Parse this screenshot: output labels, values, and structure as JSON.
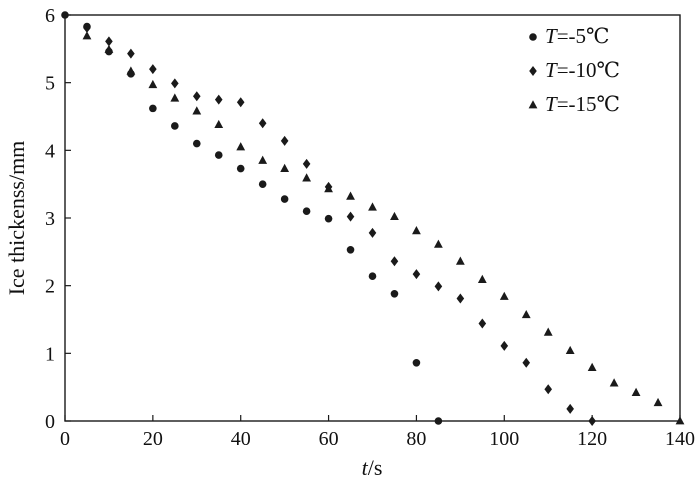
{
  "chart_data": {
    "type": "scatter",
    "xlabel_italic": "t",
    "xlabel_rest": "/s",
    "ylabel": "Ice thickenss/mm",
    "xlim": [
      0,
      140
    ],
    "ylim": [
      0,
      6
    ],
    "x_ticks": [
      0,
      20,
      40,
      60,
      80,
      100,
      120,
      140
    ],
    "y_ticks": [
      0,
      1,
      2,
      3,
      4,
      5,
      6
    ],
    "grid": false,
    "legend_position": "top-right",
    "series": [
      {
        "name_italic": "T",
        "name_rest": "=-5℃",
        "marker": "circle",
        "points": [
          [
            0,
            6.0
          ],
          [
            5,
            5.83
          ],
          [
            10,
            5.46
          ],
          [
            15,
            5.13
          ],
          [
            20,
            4.62
          ],
          [
            25,
            4.36
          ],
          [
            30,
            4.1
          ],
          [
            35,
            3.93
          ],
          [
            40,
            3.73
          ],
          [
            45,
            3.5
          ],
          [
            50,
            3.28
          ],
          [
            55,
            3.1
          ],
          [
            60,
            2.99
          ],
          [
            65,
            2.53
          ],
          [
            70,
            2.14
          ],
          [
            75,
            1.88
          ],
          [
            80,
            0.86
          ],
          [
            85,
            0.0
          ]
        ]
      },
      {
        "name_italic": "T",
        "name_rest": "=-10℃",
        "marker": "diamond",
        "points": [
          [
            5,
            5.81
          ],
          [
            10,
            5.61
          ],
          [
            15,
            5.43
          ],
          [
            20,
            5.2
          ],
          [
            25,
            4.99
          ],
          [
            30,
            4.8
          ],
          [
            35,
            4.75
          ],
          [
            40,
            4.71
          ],
          [
            45,
            4.4
          ],
          [
            50,
            4.14
          ],
          [
            55,
            3.8
          ],
          [
            60,
            3.46
          ],
          [
            65,
            3.02
          ],
          [
            70,
            2.78
          ],
          [
            75,
            2.36
          ],
          [
            80,
            2.17
          ],
          [
            85,
            1.99
          ],
          [
            90,
            1.81
          ],
          [
            95,
            1.44
          ],
          [
            100,
            1.11
          ],
          [
            105,
            0.86
          ],
          [
            110,
            0.47
          ],
          [
            115,
            0.18
          ],
          [
            120,
            0.0
          ]
        ]
      },
      {
        "name_italic": "T",
        "name_rest": "=-15℃",
        "marker": "triangle",
        "points": [
          [
            5,
            5.69
          ],
          [
            10,
            5.49
          ],
          [
            15,
            5.17
          ],
          [
            20,
            4.97
          ],
          [
            25,
            4.77
          ],
          [
            30,
            4.58
          ],
          [
            35,
            4.38
          ],
          [
            40,
            4.05
          ],
          [
            45,
            3.85
          ],
          [
            50,
            3.73
          ],
          [
            55,
            3.59
          ],
          [
            60,
            3.43
          ],
          [
            65,
            3.32
          ],
          [
            70,
            3.16
          ],
          [
            75,
            3.02
          ],
          [
            80,
            2.81
          ],
          [
            85,
            2.61
          ],
          [
            90,
            2.36
          ],
          [
            95,
            2.09
          ],
          [
            100,
            1.84
          ],
          [
            105,
            1.57
          ],
          [
            110,
            1.31
          ],
          [
            115,
            1.04
          ],
          [
            120,
            0.79
          ],
          [
            125,
            0.56
          ],
          [
            130,
            0.42
          ],
          [
            135,
            0.27
          ],
          [
            140,
            0.0
          ]
        ]
      }
    ]
  }
}
